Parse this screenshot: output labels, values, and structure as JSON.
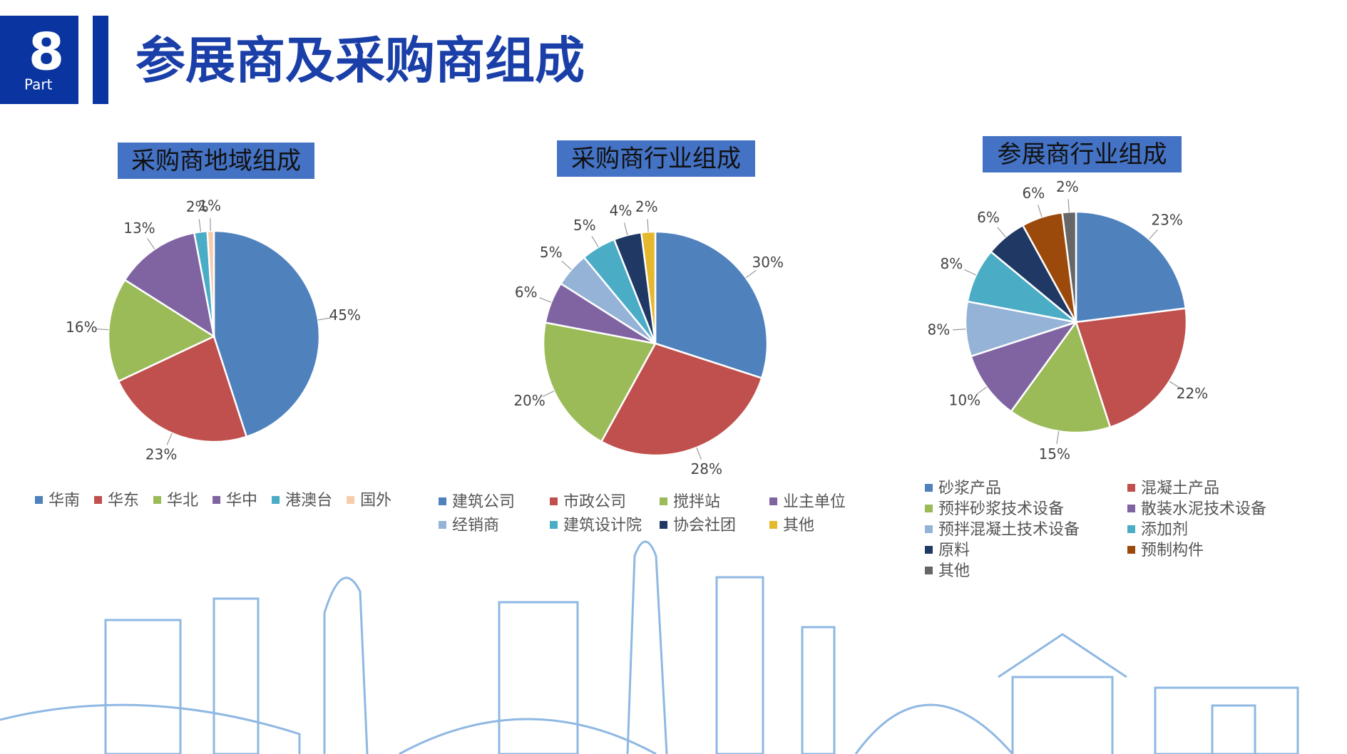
{
  "header": {
    "number": "8",
    "part": "Part",
    "title": "参展商及采购商组成"
  },
  "chart_data": [
    {
      "type": "pie",
      "title": "采购商地域组成",
      "categories": [
        "华南",
        "华东",
        "华北",
        "华中",
        "港澳台",
        "国外"
      ],
      "values": [
        45,
        23,
        16,
        13,
        2,
        1
      ],
      "value_labels": [
        "45%",
        "23%",
        "16%",
        "13%",
        "2%",
        "1%"
      ],
      "colors": [
        "#4f81bd",
        "#c0504d",
        "#9bbb59",
        "#8064a2",
        "#4bacc6",
        "#f8cbad"
      ]
    },
    {
      "type": "pie",
      "title": "采购商行业组成",
      "categories": [
        "建筑公司",
        "市政公司",
        "搅拌站",
        "业主单位",
        "经销商",
        "建筑设计院",
        "协会社团",
        "其他"
      ],
      "values": [
        30,
        28,
        20,
        6,
        5,
        5,
        4,
        2
      ],
      "value_labels": [
        "30%",
        "28%",
        "20%",
        "6%",
        "5%",
        "5%",
        "4%",
        "2%"
      ],
      "colors": [
        "#4f81bd",
        "#c0504d",
        "#9bbb59",
        "#8064a2",
        "#95b3d7",
        "#4bacc6",
        "#1f3864",
        "#e6b82e"
      ]
    },
    {
      "type": "pie",
      "title": "参展商行业组成",
      "categories": [
        "砂浆产品",
        "混凝土产品",
        "预拌砂浆技术设备",
        "散装水泥技术设备",
        "预拌混凝土技术设备",
        "添加剂",
        "原料",
        "预制构件",
        "其他"
      ],
      "values": [
        23,
        22,
        15,
        10,
        8,
        8,
        6,
        6,
        2
      ],
      "value_labels": [
        "23%",
        "22%",
        "15%",
        "10%",
        "8%",
        "8%",
        "6%",
        "6%",
        "2%"
      ],
      "colors": [
        "#4f81bd",
        "#c0504d",
        "#9bbb59",
        "#8064a2",
        "#95b3d7",
        "#4bacc6",
        "#1f3864",
        "#9c4a0c",
        "#666666"
      ]
    }
  ]
}
